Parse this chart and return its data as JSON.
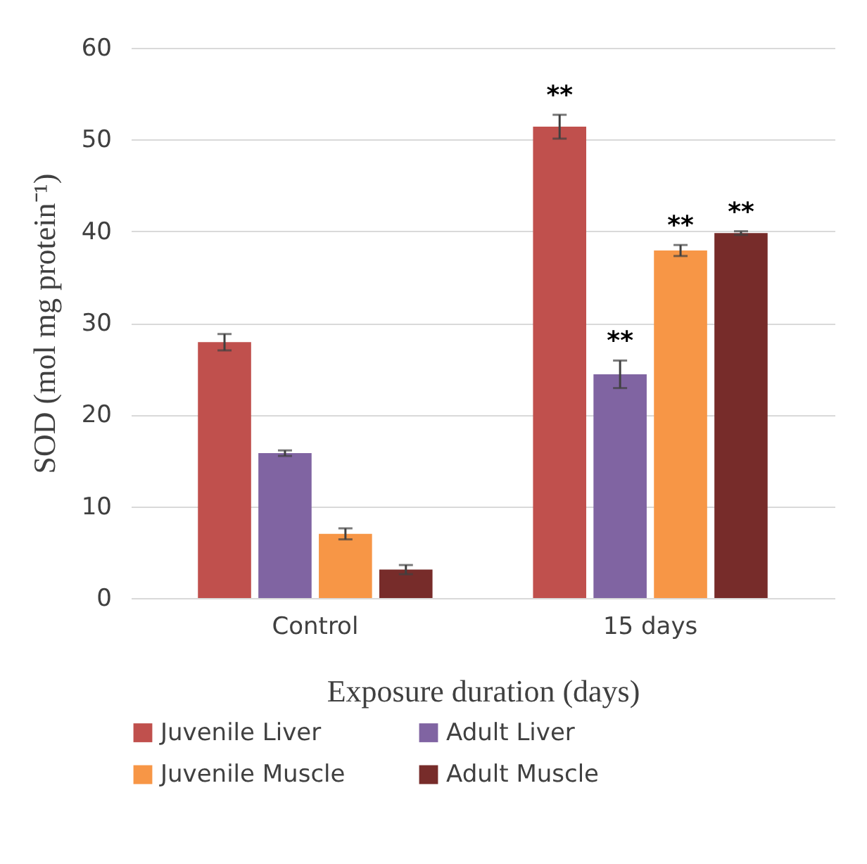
{
  "chart_data": {
    "type": "bar",
    "xlabel": "Exposure duration (days)",
    "ylabel": "SOD (mol mg protein⁻¹)",
    "categories": [
      "Control",
      "15 days"
    ],
    "series": [
      {
        "name": "Juvenile Liver",
        "color": "#c0504d",
        "values": [
          27.9,
          51.4
        ],
        "errors": [
          0.9,
          1.3
        ]
      },
      {
        "name": "Adult Liver",
        "color": "#8064a2",
        "values": [
          15.8,
          24.4
        ],
        "errors": [
          0.3,
          1.5
        ]
      },
      {
        "name": "Juvenile Muscle",
        "color": "#f79646",
        "values": [
          7.0,
          37.9
        ],
        "errors": [
          0.6,
          0.6
        ]
      },
      {
        "name": "Adult Muscle",
        "color": "#772c2a",
        "values": [
          3.1,
          39.8
        ],
        "errors": [
          0.5,
          0.2
        ]
      }
    ],
    "annotations": [
      "**",
      "**",
      "**",
      "**"
    ],
    "ylim": [
      0,
      60
    ],
    "yticks": [
      0,
      10,
      20,
      30,
      40,
      50,
      60
    ],
    "grid": "y",
    "legend": "bottom"
  }
}
